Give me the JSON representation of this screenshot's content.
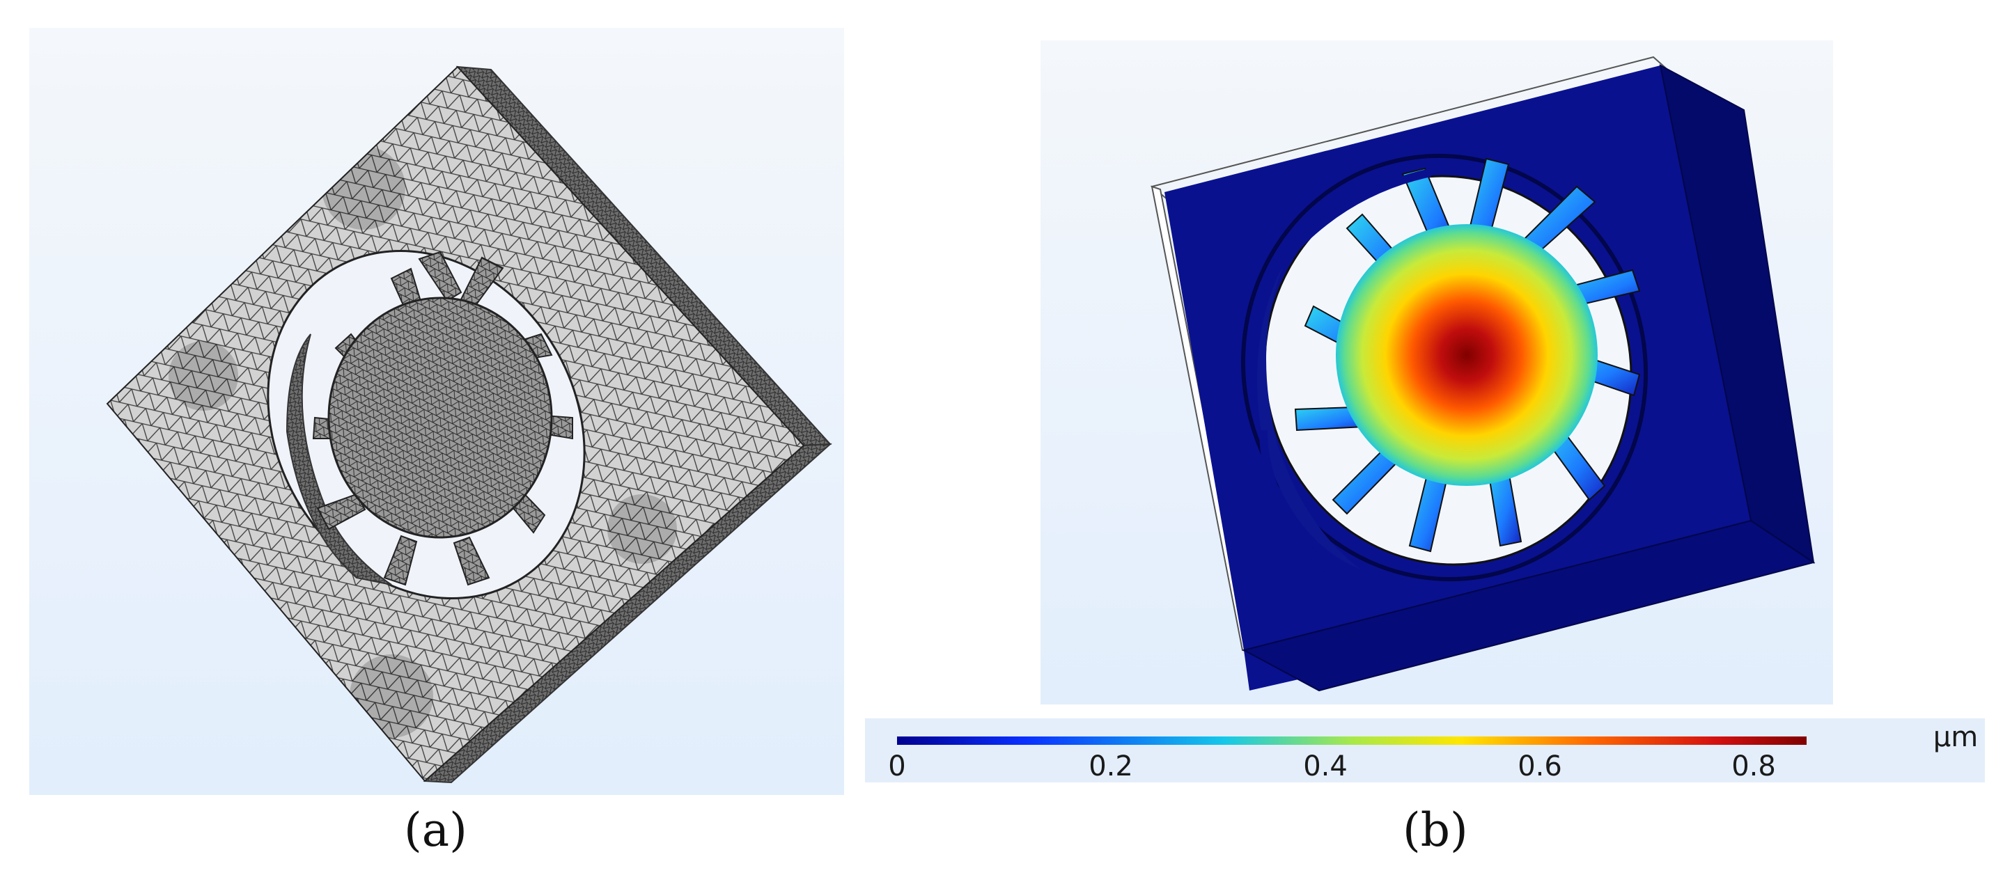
{
  "panels": {
    "a": {
      "caption": "(a)",
      "content": "mesh"
    },
    "b": {
      "caption": "(b)",
      "content": "displacement-field"
    }
  },
  "colorbar": {
    "unit": "µm",
    "min": 0,
    "max": 0.85,
    "ticks": [
      "0",
      "0.2",
      "0.4",
      "0.6",
      "0.8"
    ],
    "colormap": [
      "#00008f",
      "#0a2fff",
      "#15c8e8",
      "#a8e84a",
      "#ffe600",
      "#ff6a00",
      "#d41010",
      "#800000"
    ]
  },
  "colors": {
    "background_gradient_top": "#f4f7fb",
    "background_gradient_bottom": "#e2eefc",
    "mesh_fill": "#c9c9c9",
    "frame_blue": "#0a118f",
    "frame_blue_side": "#040a6a"
  }
}
